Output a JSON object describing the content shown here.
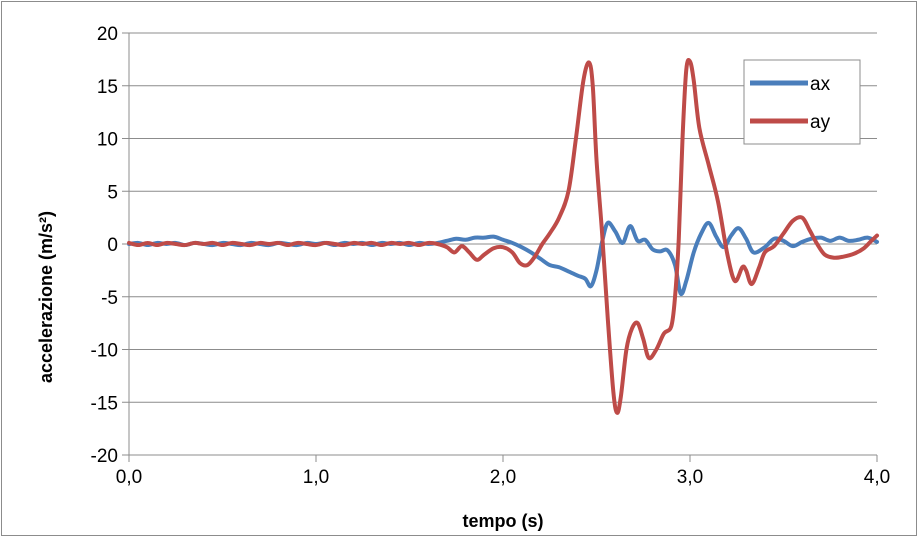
{
  "chart_data": {
    "type": "line",
    "title": "",
    "xlabel": "tempo (s)",
    "ylabel": "accelerazione (m/s²)",
    "xlim": [
      0,
      4
    ],
    "ylim": [
      -20,
      20
    ],
    "x_ticks": [
      0,
      1,
      2,
      3,
      4
    ],
    "x_tick_labels": [
      "0,0",
      "1,0",
      "2,0",
      "3,0",
      "4,0"
    ],
    "y_ticks": [
      20,
      15,
      10,
      5,
      0,
      -5,
      -10,
      -15,
      -20
    ],
    "y_tick_labels": [
      "20",
      "15",
      "10",
      "5",
      "0",
      "-5",
      "-10",
      "-15",
      "-20"
    ],
    "grid": "horizontal",
    "legend_position": "top-right",
    "series": [
      {
        "name": "ax",
        "color": "#4a7ebb",
        "points": [
          [
            0,
            0
          ],
          [
            0.05,
            0.1
          ],
          [
            0.1,
            -0.1
          ],
          [
            0.15,
            0.1
          ],
          [
            0.2,
            0
          ],
          [
            0.25,
            0.1
          ],
          [
            0.3,
            -0.1
          ],
          [
            0.35,
            0.1
          ],
          [
            0.4,
            0
          ],
          [
            0.45,
            -0.1
          ],
          [
            0.5,
            0.1
          ],
          [
            0.55,
            0
          ],
          [
            0.6,
            -0.1
          ],
          [
            0.65,
            0.1
          ],
          [
            0.7,
            0
          ],
          [
            0.75,
            -0.1
          ],
          [
            0.8,
            0.1
          ],
          [
            0.85,
            0
          ],
          [
            0.9,
            -0.1
          ],
          [
            0.95,
            0.1
          ],
          [
            1.0,
            0
          ],
          [
            1.05,
            0.1
          ],
          [
            1.1,
            -0.1
          ],
          [
            1.15,
            0.1
          ],
          [
            1.2,
            0
          ],
          [
            1.25,
            0.1
          ],
          [
            1.3,
            -0.1
          ],
          [
            1.35,
            0.1
          ],
          [
            1.4,
            0
          ],
          [
            1.45,
            0.1
          ],
          [
            1.5,
            -0.1
          ],
          [
            1.55,
            0.1
          ],
          [
            1.6,
            0
          ],
          [
            1.65,
            0.1
          ],
          [
            1.7,
            0.3
          ],
          [
            1.75,
            0.5
          ],
          [
            1.8,
            0.4
          ],
          [
            1.85,
            0.6
          ],
          [
            1.9,
            0.6
          ],
          [
            1.95,
            0.7
          ],
          [
            2.0,
            0.4
          ],
          [
            2.05,
            0.1
          ],
          [
            2.1,
            -0.3
          ],
          [
            2.15,
            -0.8
          ],
          [
            2.2,
            -1.4
          ],
          [
            2.25,
            -2.0
          ],
          [
            2.3,
            -2.2
          ],
          [
            2.35,
            -2.6
          ],
          [
            2.4,
            -3.0
          ],
          [
            2.44,
            -3.3
          ],
          [
            2.47,
            -4.0
          ],
          [
            2.5,
            -2.5
          ],
          [
            2.53,
            0.2
          ],
          [
            2.56,
            2.0
          ],
          [
            2.6,
            1.2
          ],
          [
            2.64,
            0.1
          ],
          [
            2.68,
            1.7
          ],
          [
            2.72,
            0.3
          ],
          [
            2.76,
            0.4
          ],
          [
            2.8,
            -0.5
          ],
          [
            2.84,
            -0.7
          ],
          [
            2.88,
            -0.6
          ],
          [
            2.92,
            -2.0
          ],
          [
            2.95,
            -4.7
          ],
          [
            2.98,
            -3.5
          ],
          [
            3.02,
            -0.8
          ],
          [
            3.06,
            1.0
          ],
          [
            3.1,
            2.0
          ],
          [
            3.14,
            0.7
          ],
          [
            3.18,
            -0.3
          ],
          [
            3.22,
            0.8
          ],
          [
            3.26,
            1.5
          ],
          [
            3.3,
            0.5
          ],
          [
            3.34,
            -0.8
          ],
          [
            3.4,
            -0.3
          ],
          [
            3.45,
            0.5
          ],
          [
            3.5,
            0.3
          ],
          [
            3.55,
            -0.2
          ],
          [
            3.6,
            0.2
          ],
          [
            3.65,
            0.5
          ],
          [
            3.7,
            0.6
          ],
          [
            3.75,
            0.3
          ],
          [
            3.8,
            0.6
          ],
          [
            3.85,
            0.3
          ],
          [
            3.9,
            0.4
          ],
          [
            3.95,
            0.6
          ],
          [
            4.0,
            0.2
          ]
        ]
      },
      {
        "name": "ay",
        "color": "#be4b48",
        "points": [
          [
            0,
            0.1
          ],
          [
            0.05,
            -0.1
          ],
          [
            0.1,
            0.1
          ],
          [
            0.15,
            -0.1
          ],
          [
            0.2,
            0.1
          ],
          [
            0.25,
            0
          ],
          [
            0.3,
            -0.1
          ],
          [
            0.35,
            0.1
          ],
          [
            0.4,
            0
          ],
          [
            0.45,
            0.1
          ],
          [
            0.5,
            -0.1
          ],
          [
            0.55,
            0.1
          ],
          [
            0.6,
            0
          ],
          [
            0.65,
            -0.1
          ],
          [
            0.7,
            0.1
          ],
          [
            0.75,
            0
          ],
          [
            0.8,
            0.1
          ],
          [
            0.85,
            -0.1
          ],
          [
            0.9,
            0.1
          ],
          [
            0.95,
            0
          ],
          [
            1.0,
            -0.1
          ],
          [
            1.05,
            0.1
          ],
          [
            1.1,
            0
          ],
          [
            1.15,
            -0.1
          ],
          [
            1.2,
            0.1
          ],
          [
            1.25,
            0
          ],
          [
            1.3,
            0.1
          ],
          [
            1.35,
            -0.1
          ],
          [
            1.4,
            0.1
          ],
          [
            1.45,
            0
          ],
          [
            1.5,
            0.1
          ],
          [
            1.55,
            -0.1
          ],
          [
            1.6,
            0.1
          ],
          [
            1.65,
            0
          ],
          [
            1.7,
            -0.3
          ],
          [
            1.74,
            -0.8
          ],
          [
            1.78,
            -0.2
          ],
          [
            1.82,
            -0.8
          ],
          [
            1.86,
            -1.5
          ],
          [
            1.9,
            -1.0
          ],
          [
            1.95,
            -0.4
          ],
          [
            2.0,
            -0.3
          ],
          [
            2.05,
            -0.8
          ],
          [
            2.09,
            -1.8
          ],
          [
            2.13,
            -2.0
          ],
          [
            2.17,
            -1.2
          ],
          [
            2.21,
            0.0
          ],
          [
            2.25,
            1.0
          ],
          [
            2.3,
            2.5
          ],
          [
            2.35,
            5.0
          ],
          [
            2.39,
            10.0
          ],
          [
            2.43,
            15.5
          ],
          [
            2.46,
            17.2
          ],
          [
            2.48,
            15.0
          ],
          [
            2.5,
            8.0
          ],
          [
            2.53,
            1.0
          ],
          [
            2.56,
            -7.0
          ],
          [
            2.59,
            -14.0
          ],
          [
            2.61,
            -16.0
          ],
          [
            2.63,
            -14.5
          ],
          [
            2.66,
            -10.0
          ],
          [
            2.69,
            -8.0
          ],
          [
            2.72,
            -7.5
          ],
          [
            2.75,
            -9.0
          ],
          [
            2.78,
            -10.8
          ],
          [
            2.82,
            -10.0
          ],
          [
            2.86,
            -8.5
          ],
          [
            2.9,
            -7.8
          ],
          [
            2.92,
            -5.0
          ],
          [
            2.94,
            0.5
          ],
          [
            2.96,
            10.0
          ],
          [
            2.98,
            16.5
          ],
          [
            3.0,
            17.3
          ],
          [
            3.02,
            15.5
          ],
          [
            3.05,
            11.0
          ],
          [
            3.1,
            7.5
          ],
          [
            3.15,
            4.0
          ],
          [
            3.2,
            -1.0
          ],
          [
            3.24,
            -3.5
          ],
          [
            3.28,
            -2.2
          ],
          [
            3.3,
            -2.5
          ],
          [
            3.33,
            -3.8
          ],
          [
            3.37,
            -2.2
          ],
          [
            3.4,
            -0.8
          ],
          [
            3.45,
            -0.2
          ],
          [
            3.5,
            1.0
          ],
          [
            3.55,
            2.2
          ],
          [
            3.6,
            2.5
          ],
          [
            3.64,
            1.3
          ],
          [
            3.68,
            0.0
          ],
          [
            3.72,
            -1.0
          ],
          [
            3.77,
            -1.3
          ],
          [
            3.82,
            -1.2
          ],
          [
            3.88,
            -0.9
          ],
          [
            3.93,
            -0.4
          ],
          [
            3.97,
            0.3
          ],
          [
            4.0,
            0.8
          ]
        ]
      }
    ]
  }
}
